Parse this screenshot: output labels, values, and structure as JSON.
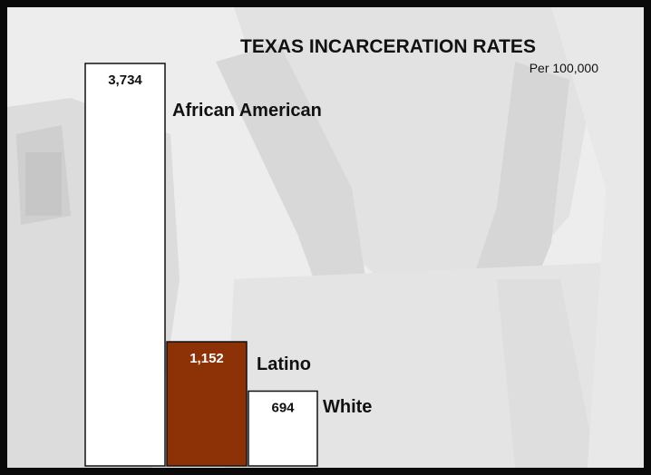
{
  "chart_data": {
    "type": "bar",
    "title": "TEXAS INCARCERATION RATES",
    "subtitle": "Per 100,000",
    "categories": [
      "African American",
      "Latino",
      "White"
    ],
    "values": [
      3734,
      1152,
      694
    ],
    "value_labels": [
      "3,734",
      "1,152",
      "694"
    ],
    "bar_colors": [
      "#ffffff",
      "#8c3206",
      "#ffffff"
    ],
    "value_label_colors": [
      "#111111",
      "#ffffff",
      "#111111"
    ],
    "ylim": [
      0,
      3734
    ],
    "grid": false,
    "legend": "none"
  },
  "colors": {
    "frame": "#0a0a0a",
    "background": "#ececec",
    "latino_bar": "#8c3206"
  }
}
